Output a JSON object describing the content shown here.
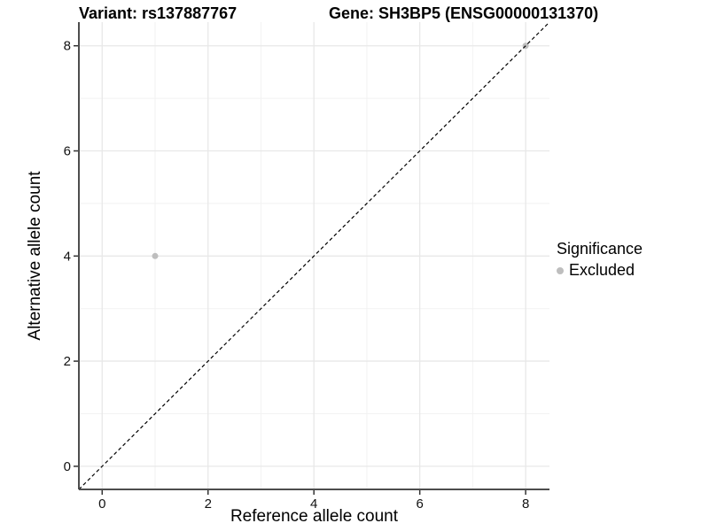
{
  "chart_data": {
    "type": "scatter",
    "title_variant": "Variant: rs137887767",
    "title_gene": "Gene: SH3BP5 (ENSG00000131370)",
    "xlabel": "Reference allele count",
    "ylabel": "Alternative allele count",
    "xlim": [
      -0.44,
      8.45
    ],
    "ylim": [
      -0.44,
      8.45
    ],
    "xticks": [
      0,
      2,
      4,
      6,
      8
    ],
    "yticks": [
      0,
      2,
      4,
      6,
      8
    ],
    "grid_minor_x": [
      1,
      3,
      5,
      7
    ],
    "grid_minor_y": [
      1,
      3,
      5,
      7
    ],
    "grid": "on",
    "identity_line": {
      "slope": 1,
      "intercept": 0,
      "style": "dashed",
      "color": "#000000"
    },
    "series": [
      {
        "name": "Excluded",
        "color": "#bebebe",
        "points": [
          {
            "x": 1,
            "y": 4
          },
          {
            "x": 8,
            "y": 8
          }
        ]
      }
    ],
    "legend": {
      "title": "Significance",
      "position": "right",
      "items": [
        {
          "label": "Excluded",
          "color": "#bebebe"
        }
      ]
    },
    "colors": {
      "axis_line": "#4d4d4d",
      "tick_mark": "#333333",
      "grid_major": "#e8e8e8",
      "grid_minor": "#f2f2f2",
      "point": "#bebebe",
      "text": "#000000"
    }
  }
}
